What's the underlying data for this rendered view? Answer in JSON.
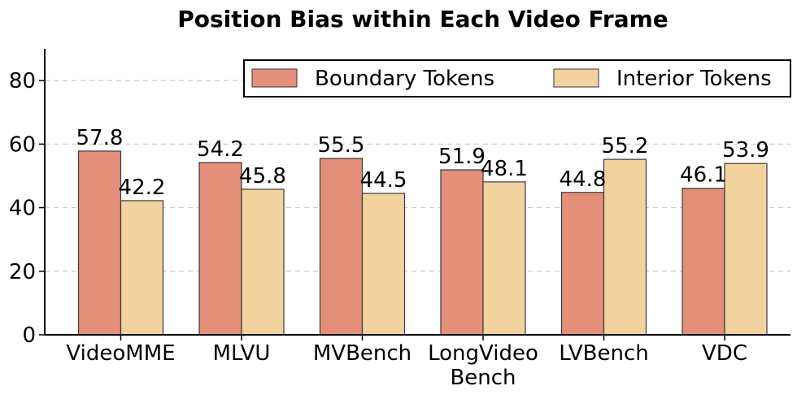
{
  "chart_data": {
    "type": "bar",
    "title": "Position Bias within Each Video Frame",
    "xlabel": "",
    "ylabel": "",
    "categories": [
      [
        "VideoMME"
      ],
      [
        "MLVU"
      ],
      [
        "MVBench"
      ],
      [
        "LongVideo",
        "Bench"
      ],
      [
        "LVBench"
      ],
      [
        "VDC"
      ]
    ],
    "series": [
      {
        "name": "Boundary Tokens",
        "color": "#E48F7A",
        "values": [
          57.8,
          54.2,
          55.5,
          51.9,
          44.8,
          46.1
        ]
      },
      {
        "name": "Interior Tokens",
        "color": "#F2D3A0",
        "values": [
          42.2,
          45.8,
          44.5,
          48.1,
          55.2,
          53.9
        ]
      }
    ],
    "ylim": [
      0,
      90
    ],
    "yticks": [
      0,
      20,
      40,
      60,
      80
    ],
    "grid": "y-dashed",
    "legend_position": "top-right"
  }
}
